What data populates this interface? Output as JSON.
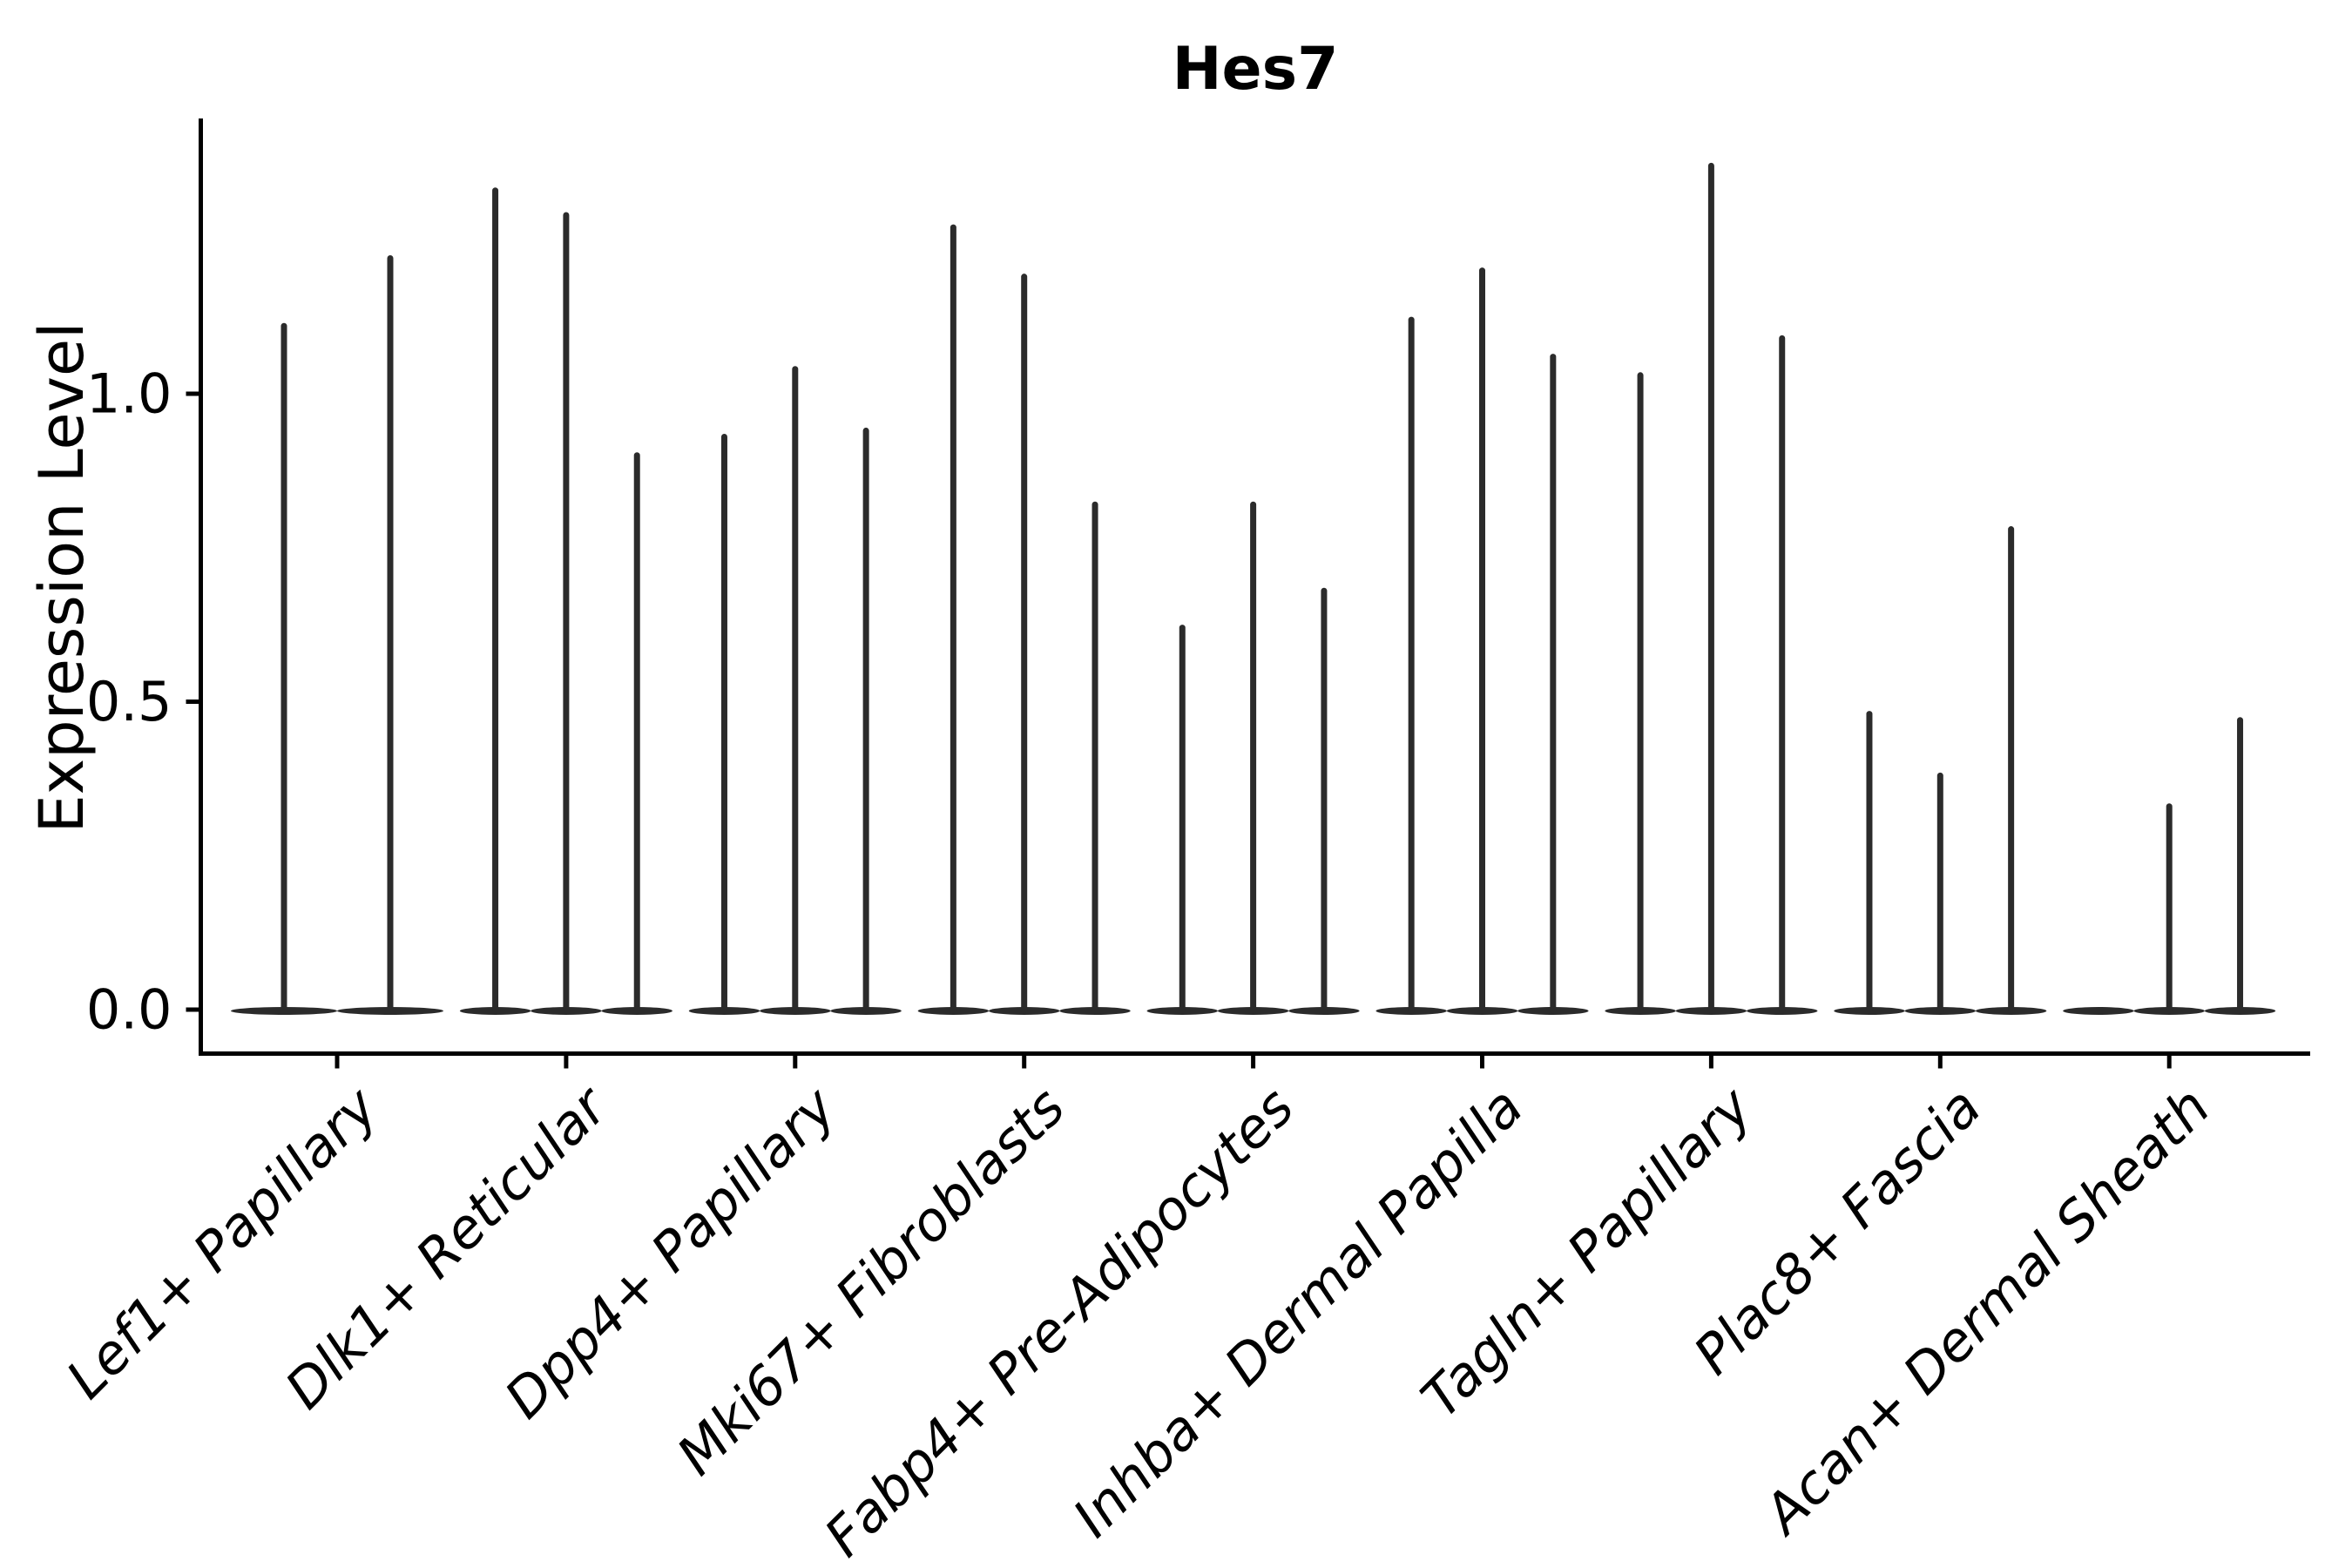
{
  "figure": {
    "background": "#ffffff"
  },
  "chart_data": {
    "type": "violin",
    "title": "Hes7",
    "xlabel": "",
    "ylabel": "Expression Level",
    "yticks": [
      0.0,
      0.5,
      1.0
    ],
    "ytick_labels": [
      "0.0",
      "0.5",
      "1.0"
    ],
    "ylim": [
      -0.07,
      1.44
    ],
    "grid": false,
    "legend": "none",
    "description": "Thin violin plots of gene expression per fibroblast subtype; each category holds 2-3 narrow violins whose bodies sit at 0 with a single spike to the maximum expression value.",
    "categories": [
      {
        "label": "Lef1+ Papillary",
        "violin_maxima": [
          1.11,
          1.22
        ]
      },
      {
        "label": "Dlk1+ Reticular",
        "violin_maxima": [
          1.33,
          1.29,
          0.9
        ]
      },
      {
        "label": "Dpp4+ Papillary",
        "violin_maxima": [
          0.93,
          1.04,
          0.94
        ]
      },
      {
        "label": "Mki67+ Fibroblasts",
        "violin_maxima": [
          1.27,
          1.19,
          0.82
        ]
      },
      {
        "label": "Fabp4+ Pre-Adipocytes",
        "violin_maxima": [
          0.62,
          0.82,
          0.68
        ]
      },
      {
        "label": "Inhba+ Dermal Papilla",
        "violin_maxima": [
          1.12,
          1.2,
          1.06
        ]
      },
      {
        "label": "Tagln+ Papillary",
        "violin_maxima": [
          1.03,
          1.37,
          1.09
        ]
      },
      {
        "label": "Plac8+ Fascia",
        "violin_maxima": [
          0.48,
          0.38,
          0.78
        ]
      },
      {
        "label": "Acan+ Dermal Sheath",
        "violin_maxima": [
          0.0,
          0.33,
          0.47
        ]
      }
    ],
    "colors": {
      "violin": "#2b2b2b",
      "axis": "#000000",
      "text": "#000000"
    }
  }
}
